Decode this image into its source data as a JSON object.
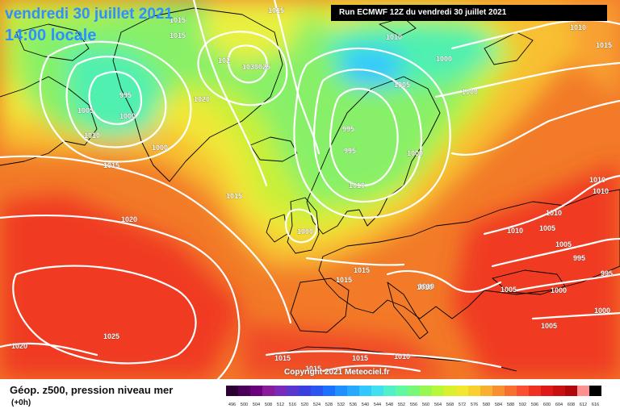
{
  "title": {
    "date": "vendredi 30 juillet 2021",
    "time": "14:00 locale"
  },
  "run_label": "Run ECMWF 12Z du vendredi 30 juillet 2021",
  "copyright": "Copyright 2021 Meteociel.fr",
  "legend": {
    "label": "Géop. z500, pression niveau mer",
    "sub": "(+0h)",
    "scale_ticks": [
      "496",
      "500",
      "504",
      "508",
      "512",
      "516",
      "520",
      "524",
      "528",
      "532",
      "536",
      "540",
      "544",
      "548",
      "552",
      "556",
      "560",
      "564",
      "568",
      "572",
      "576",
      "580",
      "584",
      "588",
      "592",
      "596",
      "600",
      "604",
      "608",
      "612",
      "616"
    ],
    "scale_colors": [
      "#2b0033",
      "#4a0058",
      "#6a007a",
      "#8a1b9a",
      "#7a2ab8",
      "#5a36cc",
      "#3a40e0",
      "#2a55f0",
      "#1e70ff",
      "#1e90ff",
      "#26aaff",
      "#30c8ff",
      "#40e0f0",
      "#50f0c8",
      "#60f8a0",
      "#78f878",
      "#98f850",
      "#b8f838",
      "#d8f030",
      "#f0e830",
      "#f8d030",
      "#f8b030",
      "#f89030",
      "#f87030",
      "#f85030",
      "#f03020",
      "#e01818",
      "#c81010",
      "#b00808",
      "#ff9090",
      "#000000"
    ]
  },
  "isobars": [
    {
      "text": "1015",
      "k": "a"
    },
    {
      "text": "1015",
      "k": "b"
    },
    {
      "text": "1015",
      "k": "c"
    },
    {
      "text": "1010",
      "k": "d"
    },
    {
      "text": "1030025",
      "k": "e"
    },
    {
      "text": "102",
      "k": "f"
    },
    {
      "text": "995",
      "k": "g"
    },
    {
      "text": "1000",
      "k": "h"
    },
    {
      "text": "1005",
      "k": "i"
    },
    {
      "text": "1010",
      "k": "j"
    },
    {
      "text": "1000",
      "k": "k"
    },
    {
      "text": "1015",
      "k": "l"
    },
    {
      "text": "1020",
      "k": "m"
    },
    {
      "text": "1015",
      "k": "n"
    },
    {
      "text": "1020",
      "k": "o"
    },
    {
      "text": "1025",
      "k": "p"
    },
    {
      "text": "1020",
      "k": "q"
    },
    {
      "text": "1010",
      "k": "r"
    },
    {
      "text": "1000",
      "k": "s"
    },
    {
      "text": "1005",
      "k": "t"
    },
    {
      "text": "1000",
      "k": "u"
    },
    {
      "text": "995",
      "k": "v"
    },
    {
      "text": "995",
      "k": "w"
    },
    {
      "text": "1000",
      "k": "x"
    },
    {
      "text": "1000",
      "k": "y"
    },
    {
      "text": "1010",
      "k": "z"
    },
    {
      "text": "1015",
      "k": "aa"
    },
    {
      "text": "1010",
      "k": "ab"
    },
    {
      "text": "1010",
      "k": "ac"
    },
    {
      "text": "1010",
      "k": "ad"
    },
    {
      "text": "1010",
      "k": "ae"
    },
    {
      "text": "1010",
      "k": "af"
    },
    {
      "text": "1005",
      "k": "ag"
    },
    {
      "text": "1005",
      "k": "ah"
    },
    {
      "text": "995",
      "k": "ai"
    },
    {
      "text": "995",
      "k": "aj"
    },
    {
      "text": "1005",
      "k": "ak"
    },
    {
      "text": "1000",
      "k": "al"
    },
    {
      "text": "1000",
      "k": "am"
    },
    {
      "text": "1005",
      "k": "an"
    },
    {
      "text": "1010",
      "k": "ao"
    },
    {
      "text": "1015",
      "k": "ap"
    },
    {
      "text": "1015",
      "k": "aq"
    },
    {
      "text": "1015",
      "k": "ar"
    },
    {
      "text": "1015",
      "k": "as"
    },
    {
      "text": "1015",
      "k": "at"
    },
    {
      "text": "1010",
      "k": "au"
    }
  ]
}
